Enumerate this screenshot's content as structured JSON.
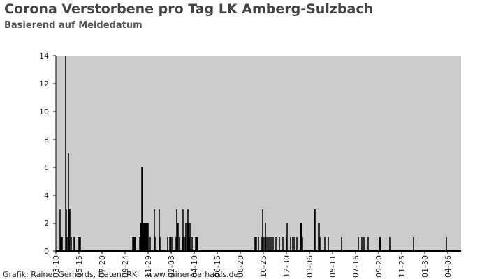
{
  "chart_data": {
    "type": "bar",
    "title": "Corona Verstorbene pro Tag LK Amberg-Sulzbach",
    "subtitle": "Basierend auf Meldedatum",
    "source": "Grafik: Rainer Gerhards, Daten: RKI | www.rainer-gerhards.de",
    "color": "#000000",
    "background": "#cccccc",
    "x": [
      12,
      14,
      16,
      18,
      28,
      30,
      32,
      36,
      38,
      40,
      44,
      52,
      54,
      66,
      68,
      70,
      220,
      222,
      224,
      226,
      228,
      240,
      242,
      244,
      246,
      248,
      250,
      252,
      254,
      256,
      258,
      260,
      262,
      264,
      270,
      282,
      284,
      296,
      298,
      320,
      326,
      328,
      330,
      334,
      344,
      346,
      348,
      350,
      354,
      362,
      364,
      366,
      370,
      372,
      376,
      378,
      380,
      382,
      384,
      390,
      400,
      402,
      404,
      406,
      570,
      572,
      574,
      580,
      590,
      592,
      594,
      598,
      600,
      602,
      606,
      610,
      614,
      618,
      622,
      630,
      640,
      650,
      660,
      662,
      672,
      678,
      680,
      684,
      690,
      700,
      702,
      704,
      706,
      740,
      742,
      752,
      754,
      756,
      770,
      780,
      818,
      866,
      876,
      880,
      884,
      894,
      926,
      928,
      930,
      956,
      1024,
      1118
    ],
    "values": [
      3,
      1,
      1,
      1,
      14,
      3,
      1,
      7,
      3,
      3,
      1,
      1,
      1,
      1,
      1,
      1,
      1,
      1,
      1,
      1,
      1,
      1,
      2,
      2,
      6,
      6,
      2,
      2,
      2,
      2,
      2,
      2,
      2,
      2,
      1,
      3,
      1,
      3,
      1,
      1,
      1,
      1,
      1,
      1,
      1,
      3,
      2,
      2,
      1,
      1,
      3,
      1,
      1,
      2,
      2,
      3,
      2,
      1,
      2,
      1,
      1,
      1,
      1,
      1,
      1,
      1,
      1,
      1,
      1,
      3,
      1,
      1,
      2,
      1,
      1,
      1,
      1,
      1,
      1,
      1,
      1,
      1,
      1,
      2,
      1,
      1,
      1,
      1,
      1,
      2,
      2,
      2,
      1,
      3,
      3,
      2,
      2,
      1,
      1,
      1,
      1,
      1,
      1,
      1,
      1,
      1,
      1,
      1,
      1,
      1,
      1,
      1
    ],
    "xlim": [
      0,
      1160
    ],
    "xticks": [
      {
        "value": 0,
        "label": "03-10"
      },
      {
        "value": 66,
        "label": "05-15"
      },
      {
        "value": 132,
        "label": "07-20"
      },
      {
        "value": 198,
        "label": "09-24"
      },
      {
        "value": 264,
        "label": "11-29"
      },
      {
        "value": 330,
        "label": "02-03"
      },
      {
        "value": 396,
        "label": "04-10"
      },
      {
        "value": 462,
        "label": "06-15"
      },
      {
        "value": 528,
        "label": "08-20"
      },
      {
        "value": 594,
        "label": "10-25"
      },
      {
        "value": 660,
        "label": "12-30"
      },
      {
        "value": 726,
        "label": "03-06"
      },
      {
        "value": 792,
        "label": "05-11"
      },
      {
        "value": 858,
        "label": "07-16"
      },
      {
        "value": 924,
        "label": "09-20"
      },
      {
        "value": 990,
        "label": "11-25"
      },
      {
        "value": 1056,
        "label": "01-30"
      },
      {
        "value": 1122,
        "label": "04-06"
      }
    ],
    "ylim": [
      0,
      14
    ],
    "yticks": [
      0,
      2,
      4,
      6,
      8,
      10,
      12,
      14
    ]
  }
}
